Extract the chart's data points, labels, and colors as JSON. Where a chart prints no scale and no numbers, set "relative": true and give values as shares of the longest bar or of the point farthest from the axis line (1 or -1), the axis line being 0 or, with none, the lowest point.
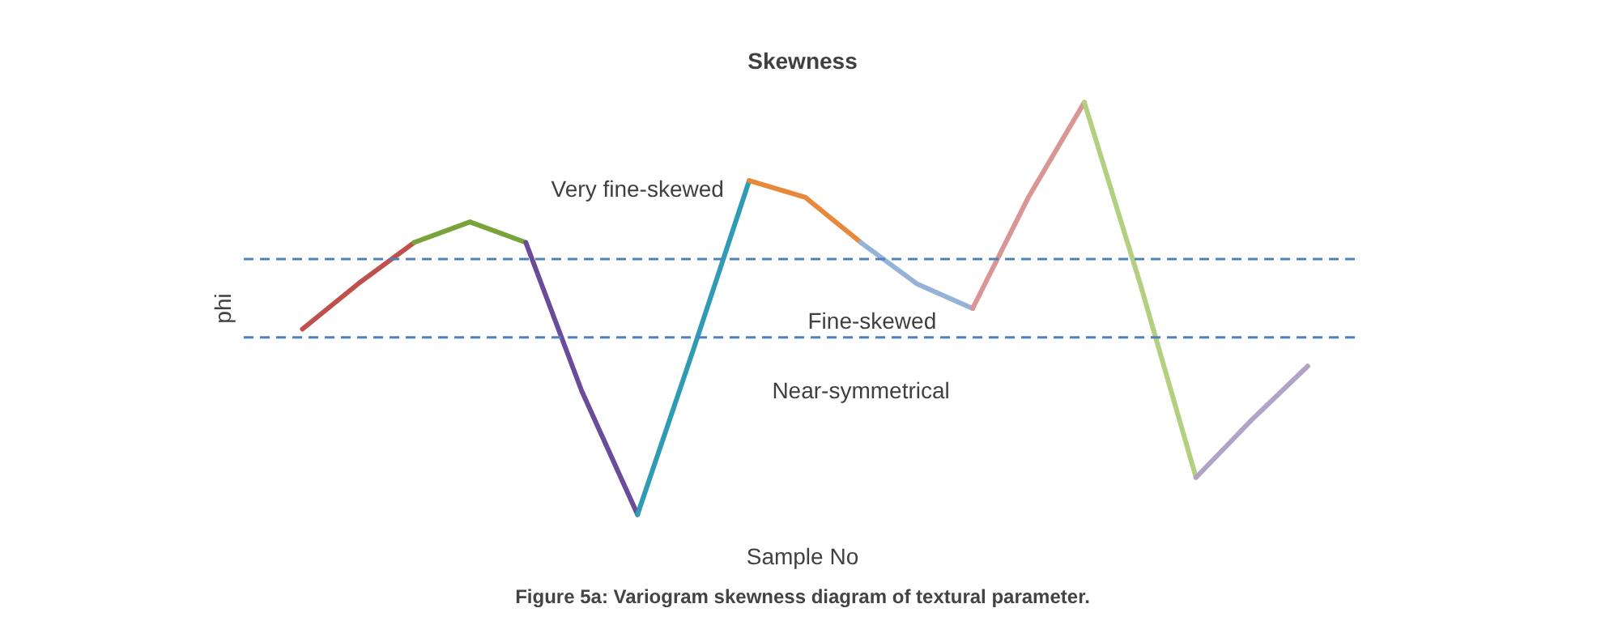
{
  "chart_data": {
    "type": "line",
    "title": "Skewness",
    "xlabel": "Sample No",
    "ylabel": "phi",
    "relative": true,
    "categories": [
      null,
      null,
      null,
      null,
      null,
      null,
      null,
      null,
      null,
      null,
      null,
      null,
      null,
      null,
      null,
      null,
      null,
      null,
      null
    ],
    "series": [
      {
        "color": "#c0504d",
        "values": [
          0.45,
          0.56,
          0.66,
          null,
          null,
          null,
          null,
          null,
          null,
          null,
          null,
          null,
          null,
          null,
          null,
          null,
          null,
          null,
          null
        ]
      },
      {
        "color": "#77a33a",
        "values": [
          null,
          null,
          0.66,
          0.71,
          0.66,
          null,
          null,
          null,
          null,
          null,
          null,
          null,
          null,
          null,
          null,
          null,
          null,
          null,
          null
        ]
      },
      {
        "color": "#6b4c9a",
        "values": [
          null,
          null,
          null,
          null,
          0.66,
          0.3,
          0,
          null,
          null,
          null,
          null,
          null,
          null,
          null,
          null,
          null,
          null,
          null,
          null
        ]
      },
      {
        "color": "#2f9bb5",
        "values": [
          null,
          null,
          null,
          null,
          null,
          null,
          0,
          0.4,
          0.81,
          null,
          null,
          null,
          null,
          null,
          null,
          null,
          null,
          null,
          null
        ]
      },
      {
        "color": "#e8883a",
        "values": [
          null,
          null,
          null,
          null,
          null,
          null,
          null,
          null,
          0.81,
          0.77,
          0.66,
          null,
          null,
          null,
          null,
          null,
          null,
          null,
          null
        ]
      },
      {
        "color": "#95b3d7",
        "values": [
          null,
          null,
          null,
          null,
          null,
          null,
          null,
          null,
          null,
          null,
          0.66,
          0.56,
          0.5,
          null,
          null,
          null,
          null,
          null,
          null
        ]
      },
      {
        "color": "#d99694",
        "values": [
          null,
          null,
          null,
          null,
          null,
          null,
          null,
          null,
          null,
          null,
          null,
          null,
          0.5,
          0.77,
          1,
          null,
          null,
          null,
          null
        ]
      },
      {
        "color": "#b3cf80",
        "values": [
          null,
          null,
          null,
          null,
          null,
          null,
          null,
          null,
          null,
          null,
          null,
          null,
          null,
          null,
          1,
          0.56,
          0.09,
          null,
          null
        ]
      },
      {
        "color": "#b3a2c7",
        "values": [
          null,
          null,
          null,
          null,
          null,
          null,
          null,
          null,
          null,
          null,
          null,
          null,
          null,
          null,
          null,
          null,
          0.09,
          0.23,
          0.36
        ]
      }
    ],
    "ref_lines": [
      {
        "axis": "y",
        "value": 0.62,
        "color": "#4f81bd",
        "line_style": "dashed"
      },
      {
        "axis": "y",
        "value": 0.43,
        "color": "#4f81bd",
        "line_style": "dashed"
      }
    ],
    "annotations": [
      "Very fine-skewed",
      "Fine-skewed",
      "Near-symmetrical",
      "Figure 5a: Variogram skewness diagram of textural parameter."
    ]
  }
}
